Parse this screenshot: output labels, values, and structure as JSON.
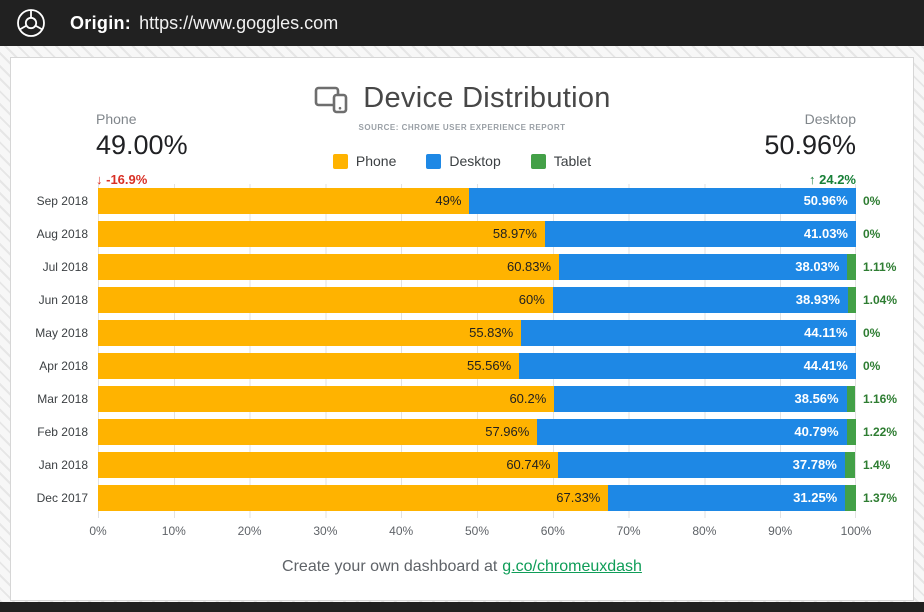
{
  "header": {
    "origin_label": "Origin:",
    "origin_url": "https://www.goggles.com"
  },
  "card": {
    "title": "Device Distribution",
    "subtitle": "SOURCE: CHROME USER EXPERIENCE REPORT",
    "stats": {
      "phone": {
        "label": "Phone",
        "value": "49.00%",
        "arrow": "↓",
        "delta": "-16.9%",
        "delta_color": "#D93025"
      },
      "desktop": {
        "label": "Desktop",
        "value": "50.96%",
        "arrow": "↑",
        "delta": "24.2%",
        "delta_color": "#188038"
      }
    },
    "footer": {
      "text": "Create your own dashboard at",
      "link_label": "g.co/chromeuxdash",
      "link_color": "#0F9D58"
    }
  },
  "chart_data": {
    "type": "bar",
    "orientation": "horizontal",
    "stacked": true,
    "title": "Device Distribution",
    "categories": [
      "Sep 2018",
      "Aug 2018",
      "Jul 2018",
      "Jun 2018",
      "May 2018",
      "Apr 2018",
      "Mar 2018",
      "Feb 2018",
      "Jan 2018",
      "Dec 2017"
    ],
    "series": [
      {
        "name": "Phone",
        "color": "#FFB300",
        "label_color": "#212121",
        "values": [
          49,
          58.97,
          60.83,
          60,
          55.83,
          55.56,
          60.2,
          57.96,
          60.74,
          67.33
        ],
        "labels": [
          "49%",
          "58.97%",
          "60.83%",
          "60%",
          "55.83%",
          "55.56%",
          "60.2%",
          "57.96%",
          "60.74%",
          "67.33%"
        ]
      },
      {
        "name": "Desktop",
        "color": "#1E88E5",
        "label_color": "#FFFFFF",
        "values": [
          50.96,
          41.03,
          38.03,
          38.93,
          44.11,
          44.41,
          38.56,
          40.79,
          37.78,
          31.25
        ],
        "labels": [
          "50.96%",
          "41.03%",
          "38.03%",
          "38.93%",
          "44.11%",
          "44.41%",
          "38.56%",
          "40.79%",
          "37.78%",
          "31.25%"
        ]
      },
      {
        "name": "Tablet",
        "color": "#43A047",
        "label_color": "#2E7D32",
        "values": [
          0,
          0,
          1.11,
          1.04,
          0,
          0,
          1.16,
          1.22,
          1.4,
          1.37
        ],
        "labels": [
          "0%",
          "0%",
          "1.11%",
          "1.04%",
          "0%",
          "0%",
          "1.16%",
          "1.22%",
          "1.4%",
          "1.37%"
        ]
      }
    ],
    "x_ticks": [
      "0%",
      "10%",
      "20%",
      "30%",
      "40%",
      "50%",
      "60%",
      "70%",
      "80%",
      "90%",
      "100%"
    ],
    "xlim": [
      0,
      100
    ],
    "grid": true,
    "legend_position": "top-center"
  }
}
